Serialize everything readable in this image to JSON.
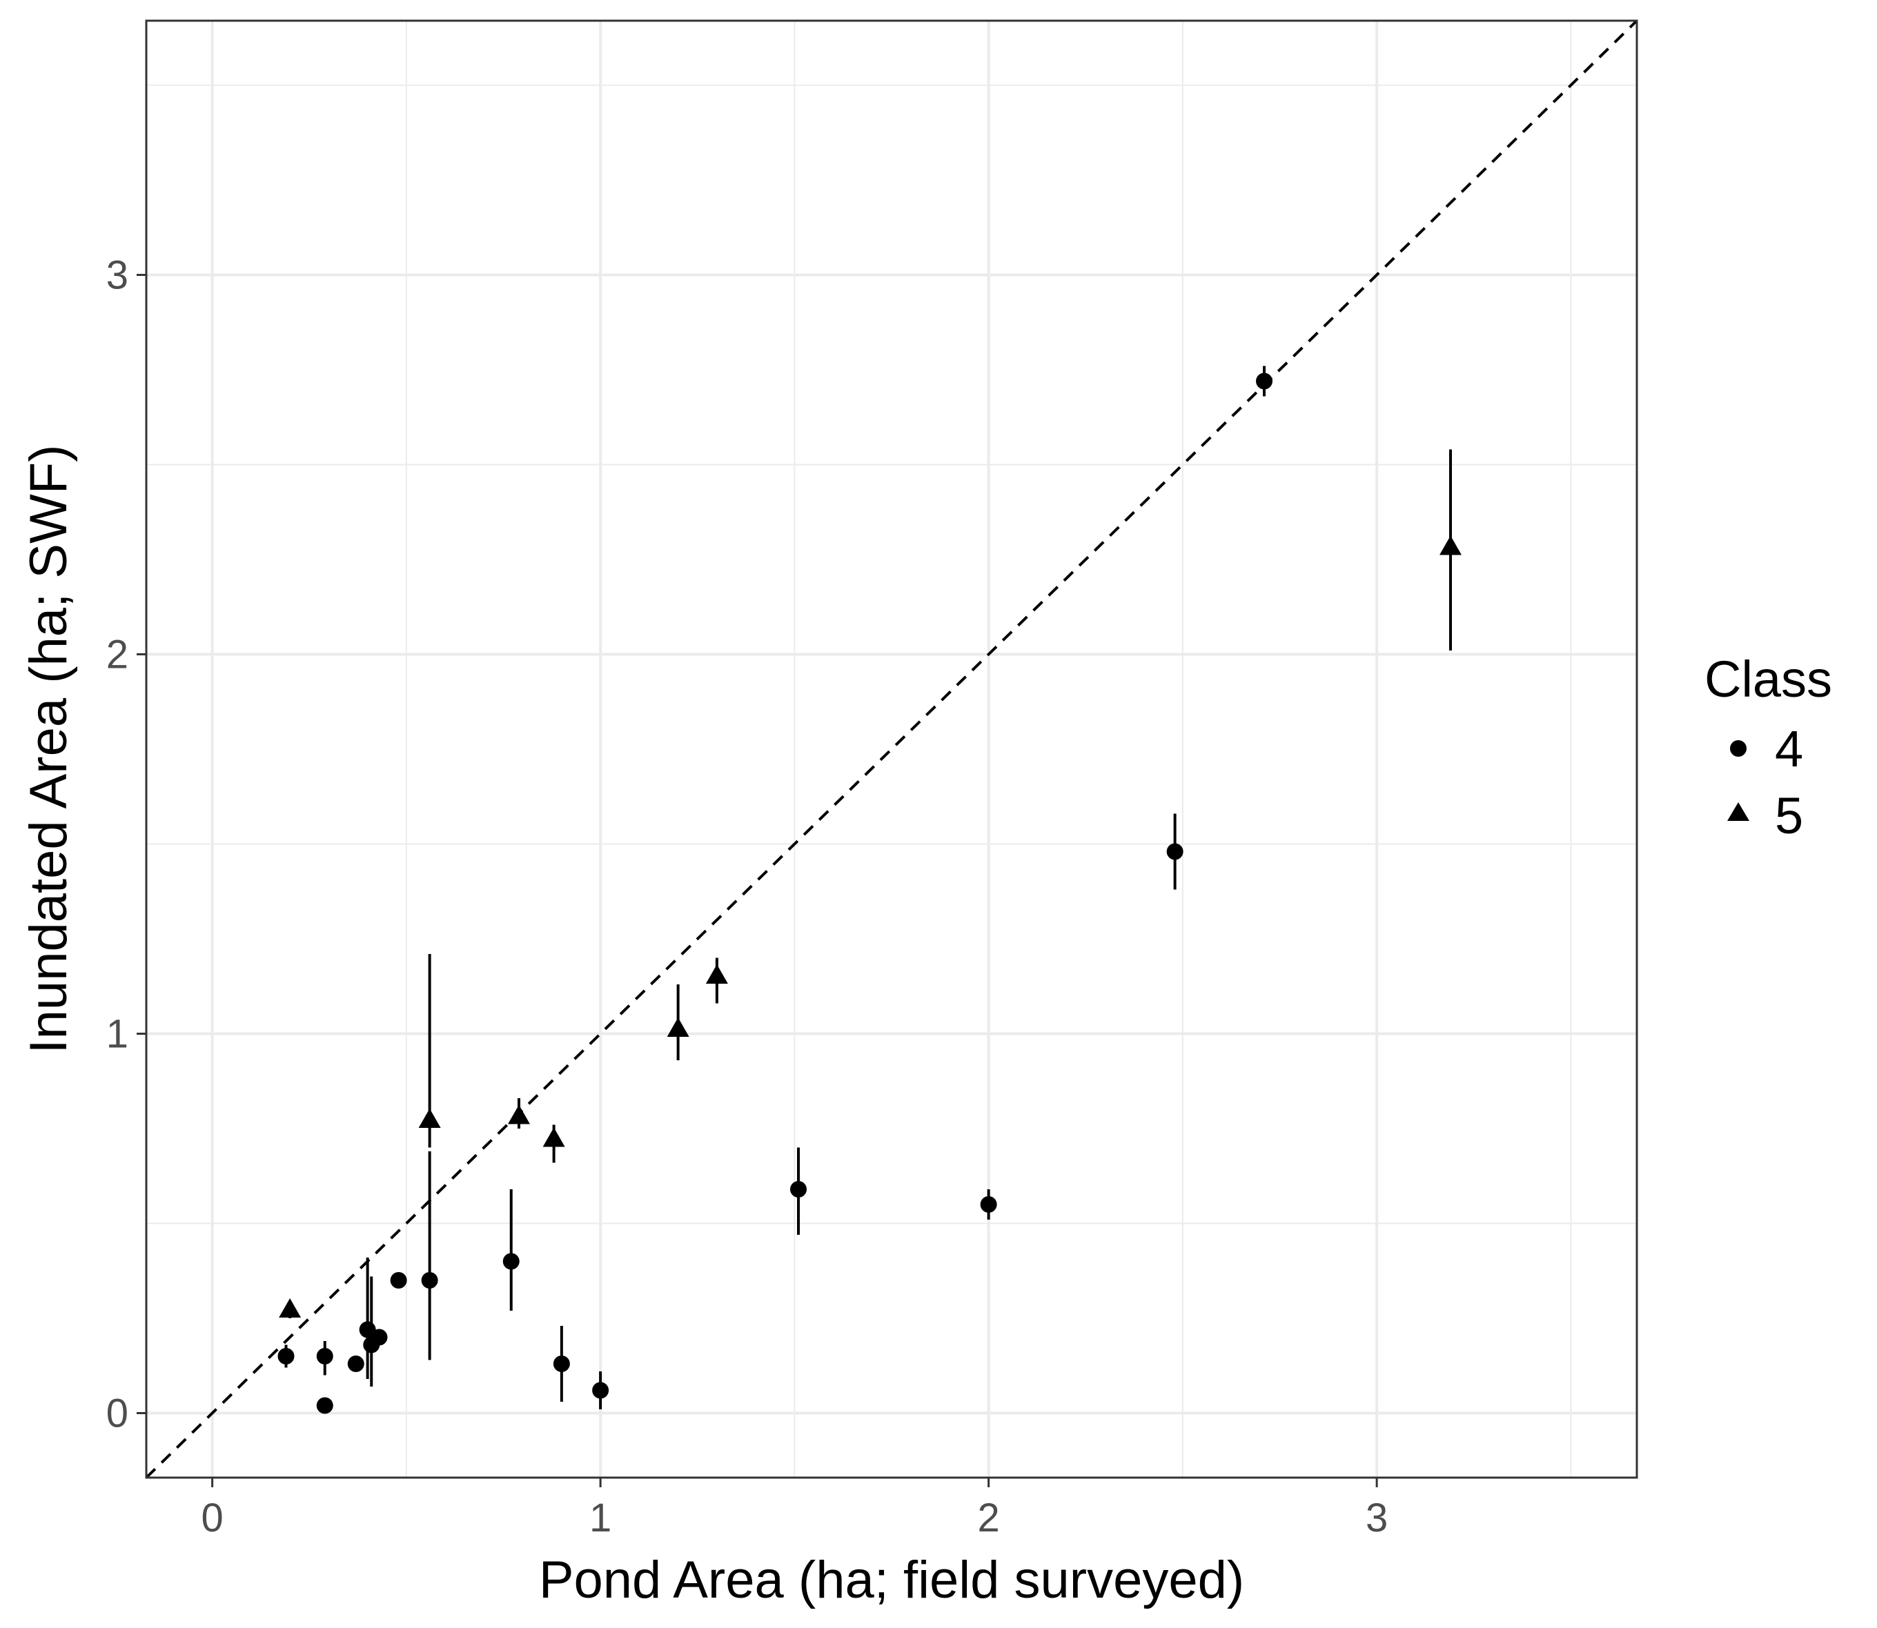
{
  "chart_data": {
    "type": "scatter",
    "title": "",
    "xlabel": "Pond Area (ha; field surveyed)",
    "ylabel": "Inundated Area (ha; SWF)",
    "xlim": [
      -0.17,
      3.67
    ],
    "ylim": [
      -0.17,
      3.67
    ],
    "xticks": [
      0,
      1,
      2,
      3
    ],
    "yticks": [
      0,
      1,
      2,
      3
    ],
    "x_tick_labels": [
      "0",
      "1",
      "2",
      "3"
    ],
    "y_tick_labels": [
      "0",
      "1",
      "2",
      "3"
    ],
    "grid": true,
    "reference_line": {
      "style": "dashed",
      "slope": 1,
      "intercept": 0
    },
    "legend": {
      "title": "Class",
      "position": "right",
      "entries": [
        {
          "label": "4",
          "shape": "circle"
        },
        {
          "label": "5",
          "shape": "triangle"
        }
      ]
    },
    "series": [
      {
        "name": "4",
        "shape": "circle",
        "points": [
          {
            "x": 0.19,
            "y": 0.15,
            "ymin": 0.12,
            "ymax": 0.18
          },
          {
            "x": 0.29,
            "y": 0.15,
            "ymin": 0.1,
            "ymax": 0.19
          },
          {
            "x": 0.29,
            "y": 0.02,
            "ymin": 0.01,
            "ymax": 0.03
          },
          {
            "x": 0.37,
            "y": 0.13,
            "ymin": 0.11,
            "ymax": 0.15
          },
          {
            "x": 0.4,
            "y": 0.22,
            "ymin": 0.09,
            "ymax": 0.41
          },
          {
            "x": 0.41,
            "y": 0.18,
            "ymin": 0.07,
            "ymax": 0.36
          },
          {
            "x": 0.43,
            "y": 0.2,
            "ymin": 0.18,
            "ymax": 0.22
          },
          {
            "x": 0.48,
            "y": 0.35,
            "ymin": 0.33,
            "ymax": 0.37
          },
          {
            "x": 0.56,
            "y": 0.35,
            "ymin": 0.14,
            "ymax": 0.69
          },
          {
            "x": 0.77,
            "y": 0.4,
            "ymin": 0.27,
            "ymax": 0.59
          },
          {
            "x": 0.9,
            "y": 0.13,
            "ymin": 0.03,
            "ymax": 0.23
          },
          {
            "x": 1.0,
            "y": 0.06,
            "ymin": 0.01,
            "ymax": 0.11
          },
          {
            "x": 1.51,
            "y": 0.59,
            "ymin": 0.47,
            "ymax": 0.7
          },
          {
            "x": 2.0,
            "y": 0.55,
            "ymin": 0.51,
            "ymax": 0.59
          },
          {
            "x": 2.48,
            "y": 1.48,
            "ymin": 1.38,
            "ymax": 1.58
          },
          {
            "x": 2.71,
            "y": 2.72,
            "ymin": 2.68,
            "ymax": 2.76
          }
        ]
      },
      {
        "name": "5",
        "shape": "triangle",
        "points": [
          {
            "x": 0.2,
            "y": 0.27,
            "ymin": 0.25,
            "ymax": 0.29
          },
          {
            "x": 0.56,
            "y": 0.77,
            "ymin": 0.7,
            "ymax": 1.21
          },
          {
            "x": 0.79,
            "y": 0.78,
            "ymin": 0.75,
            "ymax": 0.83
          },
          {
            "x": 0.88,
            "y": 0.72,
            "ymin": 0.66,
            "ymax": 0.76
          },
          {
            "x": 1.2,
            "y": 1.01,
            "ymin": 0.93,
            "ymax": 1.13
          },
          {
            "x": 1.3,
            "y": 1.15,
            "ymin": 1.08,
            "ymax": 1.2
          },
          {
            "x": 3.19,
            "y": 2.28,
            "ymin": 2.01,
            "ymax": 2.54
          }
        ]
      }
    ]
  }
}
